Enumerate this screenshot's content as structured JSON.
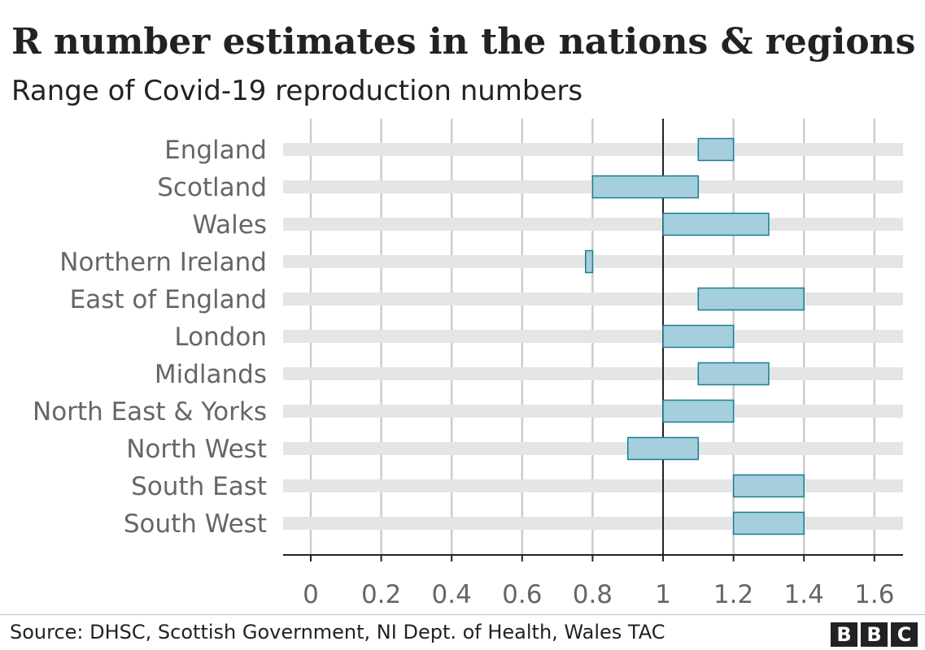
{
  "title": "R number estimates in the nations & regions",
  "subtitle": "Range of Covid-19 reproduction numbers",
  "source": "Source: DHSC, Scottish Government, NI Dept. of Health, Wales TAC",
  "logo": [
    "B",
    "B",
    "C"
  ],
  "colors": {
    "bar_fill": "#a5cfdc",
    "bar_stroke": "#1b7d96",
    "track": "#e5e5e5",
    "grid": "#cccccc",
    "reference_line": "#222222",
    "label_text": "#666666"
  },
  "chart_data": {
    "type": "bar",
    "orientation": "horizontal",
    "subtype": "range",
    "categories": [
      "England",
      "Scotland",
      "Wales",
      "Northern Ireland",
      "East of England",
      "London",
      "Midlands",
      "North East & Yorks",
      "North West",
      "South East",
      "South West"
    ],
    "ranges": [
      [
        1.1,
        1.2
      ],
      [
        0.8,
        1.1
      ],
      [
        1.0,
        1.3
      ],
      [
        0.78,
        0.8
      ],
      [
        1.1,
        1.4
      ],
      [
        1.0,
        1.2
      ],
      [
        1.1,
        1.3
      ],
      [
        1.0,
        1.2
      ],
      [
        0.9,
        1.1
      ],
      [
        1.2,
        1.4
      ],
      [
        1.2,
        1.4
      ]
    ],
    "xlim": [
      0,
      1.6
    ],
    "xticks": [
      0,
      0.2,
      0.4,
      0.6,
      0.8,
      1,
      1.2,
      1.4,
      1.6
    ],
    "xtick_labels": [
      "0",
      "0.2",
      "0.4",
      "0.6",
      "0.8",
      "1",
      "1.2",
      "1.4",
      "1.6"
    ],
    "reference_line": 1,
    "grid": true
  }
}
